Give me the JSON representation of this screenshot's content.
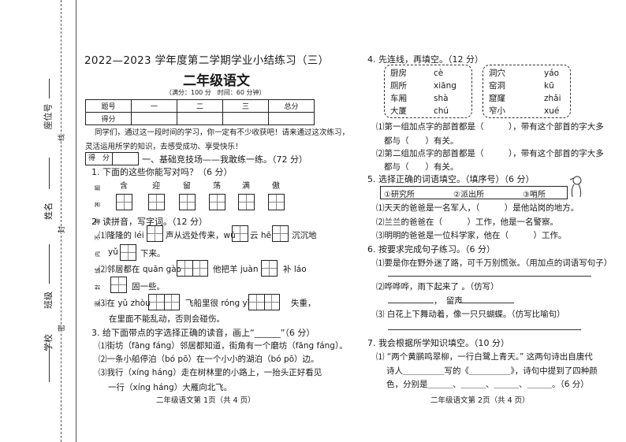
{
  "binding": {
    "seat": "座位号",
    "name": "姓名",
    "class": "班级",
    "school": "学校",
    "mark_line": "线",
    "mark_seal": "封",
    "mark_secret": "密",
    "warning": "密封线内不要答题"
  },
  "page1": {
    "title": "2022—2023 学年度第二学期学业小结练习（三）",
    "subject": "二年级语文",
    "note": "（满分：100 分　时间：60 分钟）",
    "table": {
      "header": [
        "题号",
        "一",
        "二",
        "三",
        "总分"
      ],
      "row_label": "得分"
    },
    "intro1": "同学们，通过这一段时间的学习，你一定有不少收获吧！请来通过这次练习，",
    "intro2": "灵活运用所学的知识，去感受成功、享受快乐！",
    "score_label": "得　分",
    "section1": "一、基础竞技场——我敢练一练。（72 分）",
    "q1": "1. 下面的这些你能写对吗？（6 分）",
    "q1_chars": [
      "含",
      "迎",
      "留",
      "荡",
      "满",
      "傲"
    ],
    "q2": "2. 读拼音，写字词。（12 分）",
    "q2_1a": "⑴隆隆的 léi",
    "q2_1b": "声从远处传来，wū",
    "q2_1c": "云 hēi",
    "q2_1d": "沉沉地",
    "q2_1e": "yǔ",
    "q2_1f": "下来。",
    "q2_2a": "⑵邻居都在 quān gào",
    "q2_2b": "他把羊 juàn",
    "q2_2c": "补 láo",
    "q2_2d": "固一些。",
    "q2_3a": "⑶在 yǔ zhòu",
    "q2_3b": "飞船里很 róng yì",
    "q2_3c": "失重，",
    "q2_3d": "在里面不能乱动，否则会碰伤。",
    "q3": "3. 给下面带点的字选择正确的读音，画上“______”（6 分）",
    "q3_1": "⑴街坊（fāng fáng）邻居都知道，街角有一个磨坊（fāng fáng）。",
    "q3_2": "⑵一条小船停泊（bó pō）在一个小小的湖泊（bó pō）边。",
    "q3_3": "⑶我行（xíng háng）走在树林里的小路上，一抬头正好看见",
    "q3_3b": "一行（xíng háng）大雁向北飞。",
    "footer": "二年级语文第 1页（共 4 页）"
  },
  "page2": {
    "q4": "4. 先连线，再填空。（12 分）",
    "group1_words": [
      "厨房",
      "厕所",
      "车厢",
      "大厦"
    ],
    "group1_pinyin": [
      "cè",
      "xiāng",
      "shà",
      "chú"
    ],
    "group2_words": [
      "洞穴",
      "窑洞",
      "窟窿",
      "窄小"
    ],
    "group2_pinyin": [
      "yáo",
      "kū",
      "zhǎi",
      "xué"
    ],
    "q4_1": "⑴第一组加点字的部首都是（　　　），带有这个部首的字大多",
    "q4_1b": "都与（　　）有关。",
    "q4_2": "⑵第二组加点字的部首都是（　　　），带有这个部首的字大多",
    "q4_2b": "都与（　　）有关。",
    "q5": "5. 选择正确的词语填空。（填序号）（6 分）",
    "q5_options": [
      "①研究所",
      "②派出所",
      "③哨所"
    ],
    "q5_1": "⑴天天的爸爸是一名军人，（　　　）是他站岗的地方。",
    "q5_2": "⑵兰兰的爸爸在（　　　）工作，他是一名警察。",
    "q5_3": "⑶明明的爸爸是一位科学家，他在（　　　）工作。",
    "q6": "6. 按要求完成句子练习。（6 分）",
    "q6_1": "⑴要是你在野外迷了路，可千万别慌张。（用加点的词语写句子）",
    "q6_2": "⑵哗哗哗，雨下起来了 。（仿写）",
    "q6_2b": "，　留声",
    "q6_3": "⑶ 白花上下舞动着，像一只只蝴蝶。（仿写比喻句）",
    "q7": "7. 我会根据所学知识填空。（10 分）",
    "q7_1": "⑴ “两个黄鹂鸣翠柳，一行白鹭上青天。” 这两句诗出自唐代",
    "q7_1b": "诗人＿＿＿＿＿写的《＿＿＿＿＿》，诗句中提到了四种颜",
    "q7_1c": "色，分别是＿＿＿、＿＿＿、＿＿＿、＿＿＿。（6 分）",
    "footer": "二年级语文第 2页（共 4 页）"
  }
}
